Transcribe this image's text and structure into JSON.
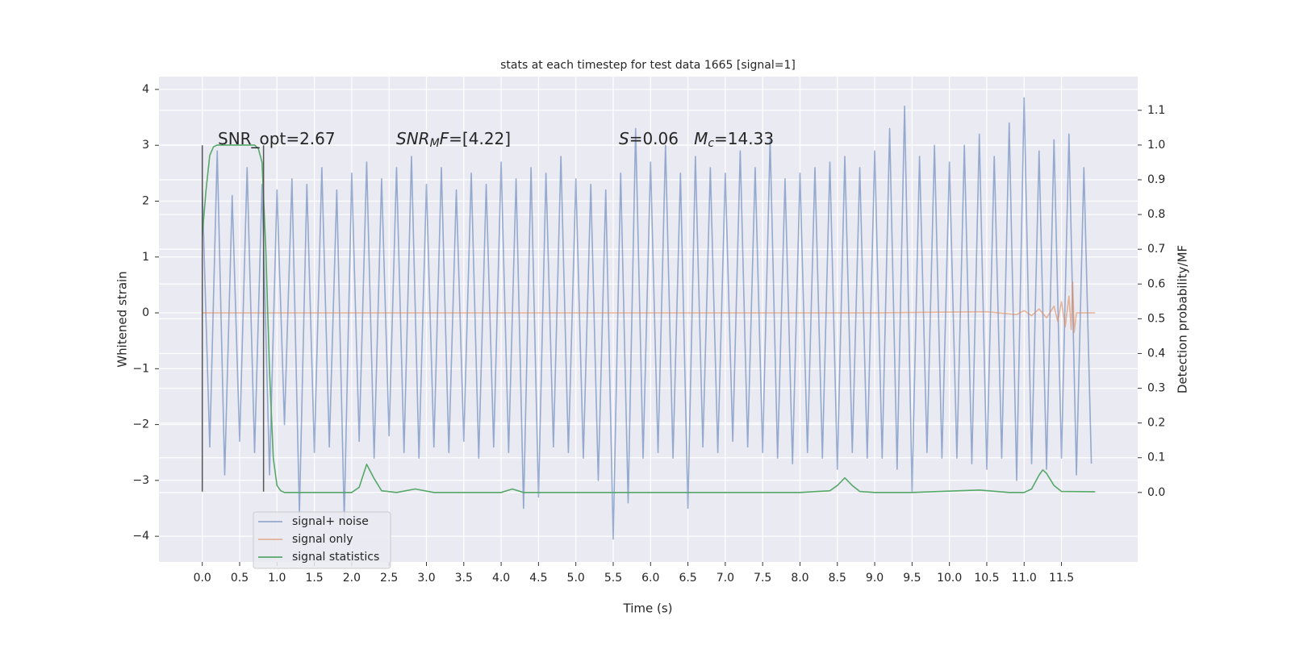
{
  "chart_data": {
    "type": "line",
    "title": "stats at each timestep for test data 1665 [signal=1]",
    "xlabel": "Time (s)",
    "ylabel": "Whitened strain",
    "y2label": "Detection probability/MF",
    "xlim": [
      -0.58,
      12.52
    ],
    "ylim": [
      -4.46,
      4.23
    ],
    "y2lim": [
      -0.2,
      1.197
    ],
    "xticks": [
      {
        "value": 0,
        "label": "0.0"
      },
      0.5,
      {
        "value": 1,
        "label": "1.0"
      },
      1.5,
      {
        "value": 2,
        "label": "2.0"
      },
      2.5,
      {
        "value": 3,
        "label": "3.0"
      },
      3.5,
      {
        "value": 4,
        "label": "4.0"
      },
      4.5,
      {
        "value": 5,
        "label": "5.0"
      },
      5.5,
      {
        "value": 6,
        "label": "6.0"
      },
      6.5,
      {
        "value": 7,
        "label": "7.0"
      },
      7.5,
      {
        "value": 8,
        "label": "8.0"
      },
      8.5,
      {
        "value": 9,
        "label": "9.0"
      },
      9.5,
      {
        "value": 10,
        "label": "10.0"
      },
      10.5,
      {
        "value": 11,
        "label": "11.0"
      },
      11.5
    ],
    "yticks": [
      {
        "value": -4,
        "label": "−4"
      },
      {
        "value": -3,
        "label": "−3"
      },
      {
        "value": -2,
        "label": "−2"
      },
      {
        "value": -1,
        "label": "−1"
      },
      0,
      1,
      2,
      3,
      4
    ],
    "y2ticks": [
      {
        "value": 0,
        "label": "0.0"
      },
      0.1,
      0.2,
      0.3,
      0.4,
      0.5,
      0.6,
      0.7,
      0.8,
      0.9,
      {
        "value": 1,
        "label": "1.0"
      },
      1.1
    ],
    "grid": true,
    "legend": "lower left",
    "series": [
      {
        "name": "signal+ noise",
        "color": "#4c72b0",
        "opacity": 0.55,
        "x": [
          0,
          0.1,
          0.2,
          0.3,
          0.4,
          0.5,
          0.6,
          0.7,
          0.8,
          0.9,
          1,
          1.1,
          1.2,
          1.3,
          1.4,
          1.5,
          1.6,
          1.7,
          1.8,
          1.9,
          2,
          2.1,
          2.2,
          2.3,
          2.4,
          2.5,
          2.6,
          2.7,
          2.8,
          2.9,
          3,
          3.1,
          3.2,
          3.3,
          3.4,
          3.5,
          3.6,
          3.7,
          3.8,
          3.9,
          4,
          4.1,
          4.2,
          4.3,
          4.4,
          4.5,
          4.6,
          4.7,
          4.8,
          4.9,
          5,
          5.1,
          5.2,
          5.3,
          5.4,
          5.5,
          5.6,
          5.7,
          5.8,
          5.9,
          6,
          6.1,
          6.2,
          6.3,
          6.4,
          6.5,
          6.6,
          6.7,
          6.8,
          6.9,
          7,
          7.1,
          7.2,
          7.3,
          7.4,
          7.5,
          7.6,
          7.7,
          7.8,
          7.9,
          8,
          8.1,
          8.2,
          8.3,
          8.4,
          8.5,
          8.6,
          8.7,
          8.8,
          8.9,
          9,
          9.1,
          9.2,
          9.3,
          9.4,
          9.5,
          9.6,
          9.7,
          9.8,
          9.9,
          10,
          10.1,
          10.2,
          10.3,
          10.4,
          10.5,
          10.6,
          10.7,
          10.8,
          10.9,
          11,
          11.1,
          11.2,
          11.3,
          11.4,
          11.5,
          11.6,
          11.7,
          11.8,
          11.9
        ],
        "values": [
          2.2,
          -2.4,
          2.9,
          -2.9,
          2.1,
          -2.3,
          2.6,
          -2.5,
          2.3,
          -2.9,
          2.2,
          -2.0,
          2.4,
          -3.6,
          2.3,
          -2.5,
          2.6,
          -2.4,
          2.2,
          -3.7,
          2.5,
          -2.3,
          2.7,
          -2.6,
          2.4,
          -2.2,
          2.6,
          -2.5,
          2.8,
          -2.6,
          2.3,
          -2.4,
          2.6,
          -2.5,
          2.2,
          -2.3,
          2.5,
          -2.6,
          2.3,
          -2.4,
          2.7,
          -2.5,
          2.4,
          -3.5,
          2.6,
          -3.3,
          2.5,
          -2.4,
          2.8,
          -2.5,
          2.4,
          -2.6,
          2.3,
          -3.0,
          2.2,
          -4.05,
          2.5,
          -3.4,
          3.3,
          -2.6,
          2.7,
          -2.5,
          3.0,
          -2.6,
          2.5,
          -3.5,
          2.8,
          -2.4,
          2.6,
          -2.5,
          2.5,
          -2.3,
          2.9,
          -2.4,
          2.6,
          -2.5,
          3.1,
          -2.6,
          2.4,
          -2.7,
          2.5,
          -2.5,
          2.6,
          -2.6,
          2.7,
          -2.8,
          2.8,
          -2.5,
          2.6,
          -2.6,
          2.9,
          -2.6,
          3.3,
          -2.8,
          3.7,
          -3.2,
          2.8,
          -2.5,
          3.0,
          -2.6,
          2.7,
          -2.6,
          3.0,
          -2.7,
          3.2,
          -2.8,
          2.8,
          -2.6,
          3.4,
          -3.0,
          3.85,
          -2.7,
          2.9,
          -2.8,
          3.1,
          -2.6,
          3.2,
          -2.9,
          2.6,
          -2.7
        ]
      },
      {
        "name": "signal only",
        "color": "#dd8452",
        "opacity": 0.55,
        "x": [
          0,
          9,
          10.5,
          10.9,
          11,
          11.1,
          11.2,
          11.3,
          11.4,
          11.45,
          11.5,
          11.55,
          11.6,
          11.63,
          11.65,
          11.67,
          11.7,
          11.95
        ],
        "values": [
          0,
          0,
          0.02,
          -0.03,
          0.04,
          -0.05,
          0.07,
          -0.09,
          0.12,
          -0.15,
          0.2,
          -0.25,
          0.3,
          -0.3,
          0.55,
          -0.35,
          0,
          0
        ]
      },
      {
        "name": "signal statistics",
        "color": "#55a868",
        "opacity": 1,
        "axis": "y2",
        "x": [
          0,
          0.05,
          0.1,
          0.15,
          0.2,
          0.3,
          0.5,
          0.7,
          0.75,
          0.8,
          0.85,
          0.9,
          0.95,
          1,
          1.05,
          1.1,
          1.5,
          2,
          2.1,
          2.2,
          2.3,
          2.4,
          2.6,
          2.85,
          3.1,
          3.5,
          4,
          4.15,
          4.3,
          5,
          6,
          8,
          8.4,
          8.5,
          8.6,
          8.7,
          8.8,
          9,
          9.5,
          10.4,
          10.8,
          11,
          11.1,
          11.2,
          11.25,
          11.3,
          11.4,
          11.5,
          11.95
        ],
        "values": [
          0.74,
          0.87,
          0.97,
          0.995,
          1,
          1,
          1,
          1,
          0.99,
          0.95,
          0.7,
          0.35,
          0.1,
          0.02,
          0.005,
          0,
          0,
          0,
          0.015,
          0.081,
          0.04,
          0.005,
          0,
          0.01,
          0,
          0,
          0,
          0.01,
          0,
          0,
          0,
          0,
          0.005,
          0.02,
          0.042,
          0.02,
          0.003,
          0,
          0,
          0.007,
          0,
          0,
          0.01,
          0.05,
          0.065,
          0.055,
          0.02,
          0.003,
          0.002
        ]
      }
    ],
    "vlines": {
      "x": [
        0,
        0.82
      ],
      "ymin": -3.2,
      "ymax": 3,
      "color": "#555555"
    },
    "annotations": [
      [
        {
          "text": "SNR_opt=2.67",
          "italic": false,
          "sub": false
        }
      ],
      [
        {
          "text": "SNR",
          "italic": true,
          "sub": false
        },
        {
          "text": "M",
          "italic": true,
          "sub": true
        },
        {
          "text": "F",
          "italic": true,
          "sub": false
        },
        {
          "text": "=[4.22]",
          "italic": false,
          "sub": false
        }
      ],
      [
        {
          "text": "S",
          "italic": true,
          "sub": false
        },
        {
          "text": "=0.06   ",
          "italic": false,
          "sub": false
        },
        {
          "text": "M",
          "italic": true,
          "sub": false
        },
        {
          "text": "c",
          "italic": true,
          "sub": true
        },
        {
          "text": "=14.33",
          "italic": false,
          "sub": false
        }
      ]
    ]
  }
}
